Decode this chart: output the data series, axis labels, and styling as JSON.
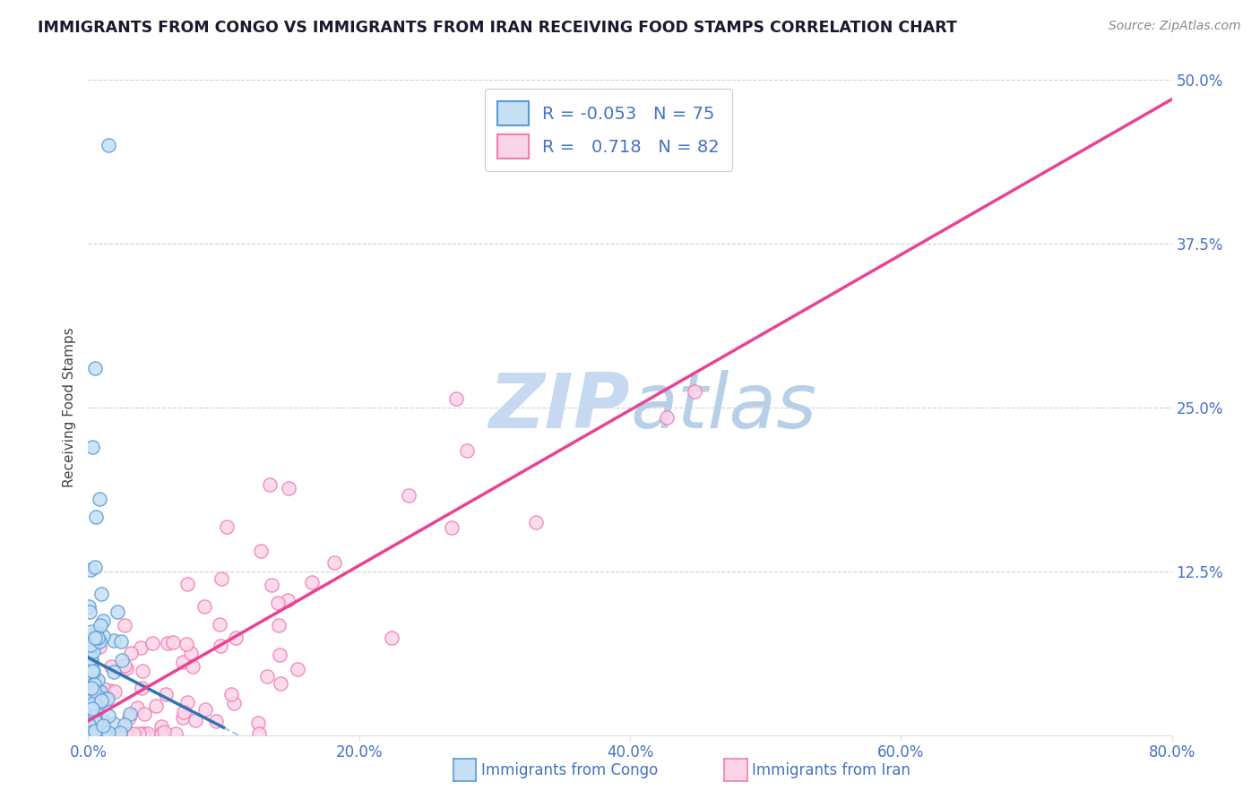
{
  "title": "IMMIGRANTS FROM CONGO VS IMMIGRANTS FROM IRAN RECEIVING FOOD STAMPS CORRELATION CHART",
  "source": "Source: ZipAtlas.com",
  "xlim": [
    0.0,
    80.0
  ],
  "ylim": [
    0.0,
    50.0
  ],
  "congo_edge_color": "#5b9bd5",
  "iran_edge_color": "#f07eb0",
  "congo_face_color": "#c5dff5",
  "iran_face_color": "#fad4e8",
  "congo_line_color": "#2e75b6",
  "iran_line_color": "#e84393",
  "dash_line_color": "#9dc3e6",
  "legend_R_congo": "-0.053",
  "legend_N_congo": "75",
  "legend_R_iran": "0.718",
  "legend_N_iran": "82",
  "watermark": "ZIPatlas",
  "watermark_color": "#c6d9f1",
  "background_color": "#ffffff",
  "grid_color": "#cccccc",
  "title_color": "#1a1a2e",
  "axis_label_color": "#4472c4",
  "legend_text_color": "#4472c4",
  "ylabel": "Receiving Food Stamps"
}
